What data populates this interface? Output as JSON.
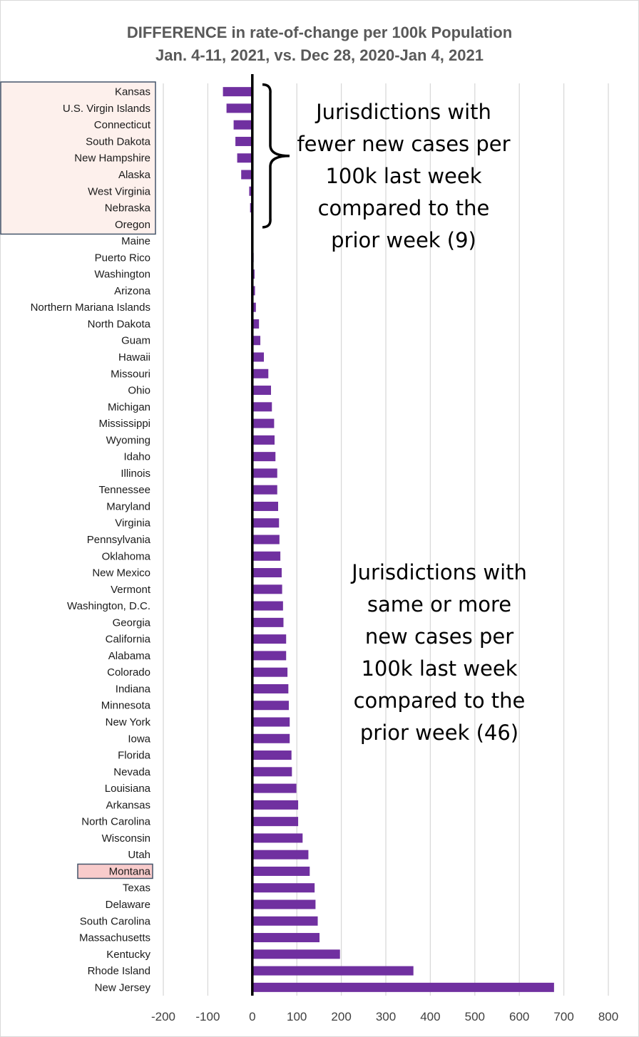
{
  "title_line1": "DIFFERENCE in rate-of-change per 100k Population",
  "title_line2": "Jan. 4-11, 2021, vs. Dec 28, 2020-Jan 4, 2021",
  "colors": {
    "bar": "#7030a0",
    "grid": "#d9d9d9",
    "axis": "#000000",
    "group_fill": "#fdf0ec",
    "group_border": "#44546a",
    "highlight_fill": "#f8cbcb"
  },
  "annotations": {
    "fewer": [
      "Jurisdictions with",
      "fewer new cases per",
      "100k last week",
      "compared to the",
      "prior week (9)"
    ],
    "more": [
      "Jurisdictions with",
      "same or more",
      "new cases per",
      "100k last week",
      "compared to the",
      "prior week (46)"
    ]
  },
  "chart_data": {
    "type": "bar",
    "orientation": "horizontal",
    "xlim": [
      -200,
      800
    ],
    "xticks": [
      -200,
      -100,
      0,
      100,
      200,
      300,
      400,
      500,
      600,
      700,
      800
    ],
    "grid": true,
    "highlighted_group": [
      "Kansas",
      "U.S. Virgin Islands",
      "Connecticut",
      "South Dakota",
      "New Hampshire",
      "Alaska",
      "West Virginia",
      "Nebraska",
      "Oregon"
    ],
    "highlighted_category": "Montana",
    "categories": [
      "Kansas",
      "U.S. Virgin Islands",
      "Connecticut",
      "South Dakota",
      "New Hampshire",
      "Alaska",
      "West Virginia",
      "Nebraska",
      "Oregon",
      "Maine",
      "Puerto Rico",
      "Washington",
      "Arizona",
      "Northern Mariana Islands",
      "North Dakota",
      "Guam",
      "Hawaii",
      "Missouri",
      "Ohio",
      "Michigan",
      "Mississippi",
      "Wyoming",
      "Idaho",
      "Illinois",
      "Tennessee",
      "Maryland",
      "Virginia",
      "Pennsylvania",
      "Oklahoma",
      "New Mexico",
      "Vermont",
      "Washington, D.C.",
      "Georgia",
      "California",
      "Alabama",
      "Colorado",
      "Indiana",
      "Minnesota",
      "New York",
      "Iowa",
      "Florida",
      "Nevada",
      "Louisiana",
      "Arkansas",
      "North Carolina",
      "Wisconsin",
      "Utah",
      "Montana",
      "Texas",
      "Delaware",
      "South Carolina",
      "Massachusetts",
      "Kentucky",
      "Rhode Island",
      "New Jersey"
    ],
    "values": [
      -66,
      -58,
      -42,
      -38,
      -34,
      -25,
      -7,
      -5,
      -1,
      0,
      3,
      5,
      6,
      8,
      15,
      18,
      26,
      36,
      42,
      44,
      49,
      50,
      52,
      56,
      56,
      58,
      60,
      61,
      63,
      66,
      67,
      69,
      70,
      76,
      76,
      79,
      81,
      82,
      84,
      84,
      88,
      89,
      99,
      103,
      103,
      113,
      126,
      129,
      140,
      142,
      147,
      151,
      197,
      362,
      678
    ]
  }
}
